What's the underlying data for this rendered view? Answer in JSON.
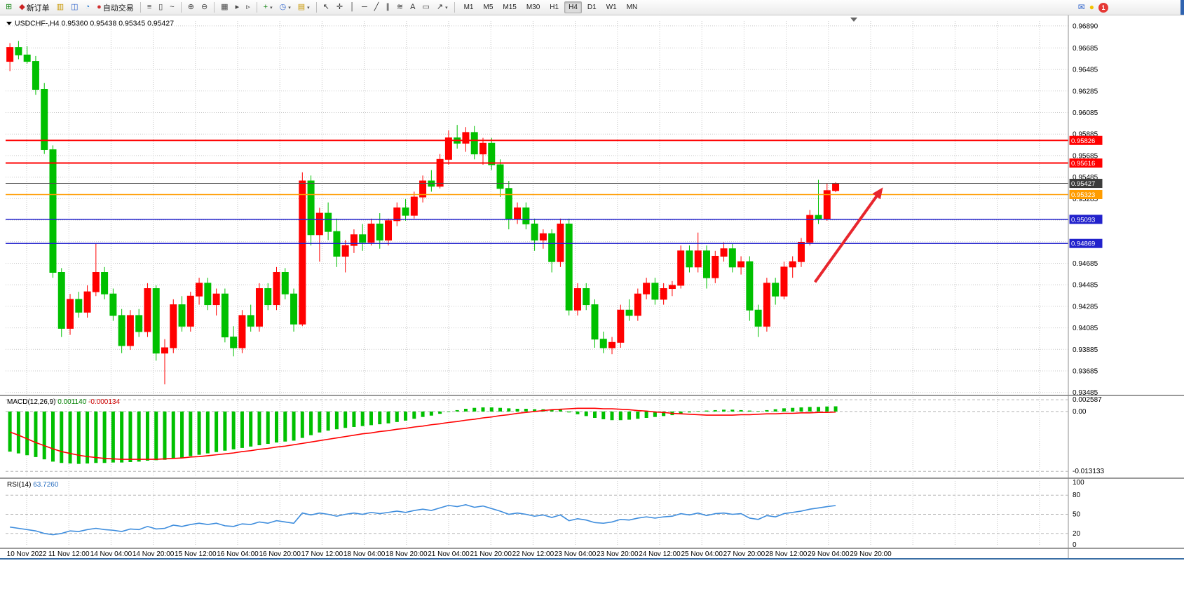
{
  "toolbar": {
    "groups": [
      {
        "name": "file-group",
        "items": [
          {
            "name": "new-chart-button",
            "glyph": "⊞",
            "color": "#1f8a1f"
          },
          {
            "name": "new-order-button",
            "glyph": "◆",
            "color": "#cc2222",
            "label": "新订单"
          },
          {
            "name": "market-watch-button",
            "glyph": "▥",
            "color": "#c89600"
          },
          {
            "name": "data-window-button",
            "glyph": "◫",
            "color": "#3366cc"
          },
          {
            "name": "navigator-button",
            "glyph": "◔",
            "color": "#2f7fd0"
          },
          {
            "name": "auto-trading-button",
            "glyph": "●",
            "color": "#d03030",
            "label": "自动交易"
          }
        ]
      },
      {
        "name": "chart-type-group",
        "items": [
          {
            "name": "bar-chart-button",
            "glyph": "≡",
            "color": "#444444"
          },
          {
            "name": "candlestick-chart-button",
            "glyph": "▯",
            "color": "#444444"
          },
          {
            "name": "line-chart-button",
            "glyph": "~",
            "color": "#444444"
          }
        ]
      },
      {
        "name": "zoom-group",
        "items": [
          {
            "name": "zoom-in-button",
            "glyph": "⊕",
            "color": "#444444"
          },
          {
            "name": "zoom-out-button",
            "glyph": "⊖",
            "color": "#444444"
          }
        ]
      },
      {
        "name": "window-group",
        "items": [
          {
            "name": "tile-windows-button",
            "glyph": "▦",
            "color": "#444444"
          },
          {
            "name": "auto-scroll-button",
            "glyph": "▸",
            "color": "#444444"
          },
          {
            "name": "chart-shift-button",
            "glyph": "▹",
            "color": "#444444"
          }
        ]
      },
      {
        "name": "insert-group",
        "items": [
          {
            "name": "indicators-button",
            "glyph": "+",
            "color": "#1f8a1f",
            "dropdown": true
          },
          {
            "name": "periods-button",
            "glyph": "◷",
            "color": "#3366cc",
            "dropdown": true
          },
          {
            "name": "templates-button",
            "glyph": "▤",
            "color": "#c89600",
            "dropdown": true
          }
        ]
      },
      {
        "name": "objects-group",
        "items": [
          {
            "name": "cursor-button",
            "glyph": "↖",
            "color": "#333333"
          },
          {
            "name": "crosshair-button",
            "glyph": "✛",
            "color": "#333333"
          },
          {
            "name": "vertical-line-button",
            "glyph": "│",
            "color": "#333333"
          },
          {
            "name": "horizontal-line-button",
            "glyph": "─",
            "color": "#333333"
          },
          {
            "name": "trendline-button",
            "glyph": "╱",
            "color": "#333333"
          },
          {
            "name": "channel-button",
            "glyph": "∥",
            "color": "#333333"
          },
          {
            "name": "fibonacci-button",
            "glyph": "≋",
            "color": "#333333"
          },
          {
            "name": "text-button",
            "glyph": "A",
            "color": "#333333"
          },
          {
            "name": "label-button",
            "glyph": "▭",
            "color": "#333333"
          },
          {
            "name": "arrows-button",
            "glyph": "↗",
            "color": "#333333",
            "dropdown": true
          }
        ]
      }
    ],
    "timeframes": [
      "M1",
      "M5",
      "M15",
      "M30",
      "H1",
      "H4",
      "D1",
      "W1",
      "MN"
    ],
    "active_timeframe": "H4",
    "right_items": [
      {
        "name": "contact-icon",
        "glyph": "✉",
        "color": "#3366cc"
      },
      {
        "name": "lightbulb-icon",
        "glyph": "●",
        "color": "#f2c200"
      },
      {
        "name": "notification-badge",
        "label": "1"
      }
    ]
  },
  "header": {
    "symbol_period": "USDCHF-,H4",
    "open": "0.95360",
    "high": "0.95438",
    "low": "0.95345",
    "close": "0.95427"
  },
  "macd_panel": {
    "title": "MACD(12,26,9)",
    "value_main": "0.001140",
    "value_signal": "-0.000134",
    "axis_labels": [
      "0.002587",
      "0.00",
      "-0.013133"
    ]
  },
  "rsi_panel": {
    "title": "RSI(14)",
    "value": "63.7260",
    "axis_labels": [
      "100",
      "80",
      "50",
      "20",
      "0"
    ]
  },
  "chart_data": {
    "type": "candlestick",
    "symbol": "USDCHF-",
    "timeframe": "H4",
    "colors": {
      "bull": "#ff0000",
      "bear": "#00c000",
      "grid": "#c9c9c9",
      "level_dash": "#b5b5b5",
      "separator": "#9a9a9a",
      "macd_hist": "#00c000",
      "macd_signal": "#ff0000",
      "rsi_line": "#3e8ddd",
      "arrow": "#e8262d",
      "current_price_line": "#505050"
    },
    "price_range_top": 0.96935,
    "price_range_bottom": 0.9347,
    "price_axis_ticks": [
      "0.96890",
      "0.96685",
      "0.96485",
      "0.96285",
      "0.96085",
      "0.95885",
      "0.95685",
      "0.95485",
      "0.95285",
      "0.95085",
      "0.94885",
      "0.94685",
      "0.94485",
      "0.94285",
      "0.94085",
      "0.93885",
      "0.93685",
      "0.93485"
    ],
    "time_labels": [
      "10 Nov 2022",
      "11 Nov 12:00",
      "14 Nov 04:00",
      "14 Nov 20:00",
      "15 Nov 12:00",
      "16 Nov 04:00",
      "16 Nov 20:00",
      "17 Nov 12:00",
      "18 Nov 04:00",
      "18 Nov 20:00",
      "21 Nov 04:00",
      "21 Nov 20:00",
      "22 Nov 12:00",
      "23 Nov 04:00",
      "23 Nov 20:00",
      "24 Nov 12:00",
      "25 Nov 04:00",
      "27 Nov 20:00",
      "28 Nov 12:00",
      "29 Nov 04:00",
      "29 Nov 20:00"
    ],
    "levels": [
      {
        "name": "resistance-line-upper",
        "price": 0.95826,
        "label": "0.95826",
        "color": "#ff0000",
        "tag": "#ff0000",
        "width": 2
      },
      {
        "name": "resistance-line-lower",
        "price": 0.95616,
        "label": "0.95616",
        "color": "#ff0000",
        "tag": "#ff0000",
        "width": 2
      },
      {
        "name": "current-price-line",
        "price": 0.95427,
        "label": "0.95427",
        "color": "#505050",
        "tag": "#3c3c3c",
        "width": 1
      },
      {
        "name": "pivot-line-orange",
        "price": 0.95323,
        "label": "0.95323",
        "color": "#ff9c00",
        "tag": "#ff9c00",
        "width": 1.5
      },
      {
        "name": "support-line-upper",
        "price": 0.95093,
        "label": "0.95093",
        "color": "#2222cc",
        "tag": "#2222cc",
        "width": 1.5
      },
      {
        "name": "support-line-lower",
        "price": 0.94869,
        "label": "0.94869",
        "color": "#2222cc",
        "tag": "#2222cc",
        "width": 1.5
      }
    ],
    "arrow": {
      "from_index": 93.6,
      "from_price": 0.9451,
      "to_index": 101.5,
      "to_price": 0.9539,
      "width": 4
    },
    "candles": [
      [
        0.9656,
        0.9673,
        0.9647,
        0.9669
      ],
      [
        0.9669,
        0.9675,
        0.9658,
        0.9662
      ],
      [
        0.9662,
        0.967,
        0.9654,
        0.9656
      ],
      [
        0.9656,
        0.9661,
        0.9625,
        0.963
      ],
      [
        0.963,
        0.9636,
        0.957,
        0.9574
      ],
      [
        0.9574,
        0.9578,
        0.9455,
        0.946
      ],
      [
        0.946,
        0.9464,
        0.94,
        0.9408
      ],
      [
        0.9408,
        0.944,
        0.9402,
        0.9435
      ],
      [
        0.9435,
        0.9442,
        0.9418,
        0.9423
      ],
      [
        0.9423,
        0.9448,
        0.9418,
        0.9442
      ],
      [
        0.9442,
        0.9487,
        0.9438,
        0.946
      ],
      [
        0.946,
        0.9465,
        0.9435,
        0.944
      ],
      [
        0.944,
        0.9445,
        0.9415,
        0.942
      ],
      [
        0.942,
        0.9426,
        0.9385,
        0.9392
      ],
      [
        0.9392,
        0.9425,
        0.9388,
        0.942
      ],
      [
        0.942,
        0.9426,
        0.94,
        0.9405
      ],
      [
        0.9405,
        0.945,
        0.94,
        0.9445
      ],
      [
        0.9445,
        0.9448,
        0.9378,
        0.9385
      ],
      [
        0.9385,
        0.9398,
        0.9356,
        0.939
      ],
      [
        0.939,
        0.9435,
        0.9385,
        0.943
      ],
      [
        0.943,
        0.9438,
        0.9405,
        0.941
      ],
      [
        0.941,
        0.9442,
        0.9405,
        0.9438
      ],
      [
        0.9438,
        0.9455,
        0.943,
        0.945
      ],
      [
        0.945,
        0.9455,
        0.9425,
        0.943
      ],
      [
        0.943,
        0.9445,
        0.942,
        0.944
      ],
      [
        0.944,
        0.9445,
        0.9395,
        0.94
      ],
      [
        0.94,
        0.941,
        0.9382,
        0.939
      ],
      [
        0.939,
        0.9425,
        0.9385,
        0.942
      ],
      [
        0.942,
        0.943,
        0.9405,
        0.941
      ],
      [
        0.941,
        0.945,
        0.9405,
        0.9445
      ],
      [
        0.9445,
        0.945,
        0.9425,
        0.943
      ],
      [
        0.943,
        0.9465,
        0.9425,
        0.946
      ],
      [
        0.946,
        0.9464,
        0.9435,
        0.944
      ],
      [
        0.944,
        0.9445,
        0.9405,
        0.9412
      ],
      [
        0.9412,
        0.9553,
        0.941,
        0.9545
      ],
      [
        0.9545,
        0.955,
        0.9485,
        0.9495
      ],
      [
        0.9495,
        0.952,
        0.947,
        0.9515
      ],
      [
        0.9515,
        0.9525,
        0.949,
        0.9498
      ],
      [
        0.9498,
        0.951,
        0.9465,
        0.9475
      ],
      [
        0.9475,
        0.949,
        0.946,
        0.9485
      ],
      [
        0.9485,
        0.95,
        0.9478,
        0.9495
      ],
      [
        0.9495,
        0.9505,
        0.948,
        0.9488
      ],
      [
        0.9488,
        0.951,
        0.9485,
        0.9505
      ],
      [
        0.9505,
        0.9515,
        0.9482,
        0.949
      ],
      [
        0.949,
        0.951,
        0.9485,
        0.9508
      ],
      [
        0.9508,
        0.9525,
        0.9503,
        0.952
      ],
      [
        0.952,
        0.9528,
        0.9508,
        0.9513
      ],
      [
        0.9513,
        0.9535,
        0.951,
        0.953
      ],
      [
        0.953,
        0.955,
        0.9525,
        0.9545
      ],
      [
        0.9545,
        0.9555,
        0.9535,
        0.954
      ],
      [
        0.954,
        0.957,
        0.9538,
        0.9565
      ],
      [
        0.9565,
        0.9592,
        0.956,
        0.9585
      ],
      [
        0.9585,
        0.9597,
        0.9575,
        0.958
      ],
      [
        0.958,
        0.9595,
        0.9572,
        0.959
      ],
      [
        0.959,
        0.9596,
        0.9565,
        0.957
      ],
      [
        0.957,
        0.9585,
        0.956,
        0.958
      ],
      [
        0.958,
        0.9585,
        0.9555,
        0.956
      ],
      [
        0.956,
        0.9565,
        0.953,
        0.9538
      ],
      [
        0.9538,
        0.9545,
        0.95,
        0.951
      ],
      [
        0.951,
        0.9525,
        0.9505,
        0.952
      ],
      [
        0.952,
        0.9525,
        0.95,
        0.9505
      ],
      [
        0.9505,
        0.951,
        0.948,
        0.949
      ],
      [
        0.949,
        0.95,
        0.9482,
        0.9496
      ],
      [
        0.9496,
        0.95,
        0.946,
        0.947
      ],
      [
        0.947,
        0.951,
        0.9465,
        0.9505
      ],
      [
        0.9505,
        0.951,
        0.942,
        0.9425
      ],
      [
        0.9425,
        0.945,
        0.942,
        0.9445
      ],
      [
        0.9445,
        0.945,
        0.9425,
        0.943
      ],
      [
        0.943,
        0.9435,
        0.939,
        0.9398
      ],
      [
        0.9398,
        0.9405,
        0.9385,
        0.939
      ],
      [
        0.939,
        0.94,
        0.9384,
        0.9395
      ],
      [
        0.9395,
        0.943,
        0.939,
        0.9425
      ],
      [
        0.9425,
        0.9435,
        0.9415,
        0.942
      ],
      [
        0.942,
        0.9445,
        0.9415,
        0.944
      ],
      [
        0.944,
        0.9455,
        0.9435,
        0.945
      ],
      [
        0.945,
        0.9455,
        0.943,
        0.9435
      ],
      [
        0.9435,
        0.945,
        0.943,
        0.9445
      ],
      [
        0.9445,
        0.9452,
        0.9438,
        0.9448
      ],
      [
        0.9448,
        0.9485,
        0.9445,
        0.948
      ],
      [
        0.948,
        0.9485,
        0.946,
        0.9465
      ],
      [
        0.9465,
        0.9497,
        0.946,
        0.948
      ],
      [
        0.948,
        0.9485,
        0.9445,
        0.9455
      ],
      [
        0.9455,
        0.948,
        0.945,
        0.9475
      ],
      [
        0.9475,
        0.9488,
        0.947,
        0.9482
      ],
      [
        0.9482,
        0.9487,
        0.946,
        0.9465
      ],
      [
        0.9465,
        0.9475,
        0.9458,
        0.947
      ],
      [
        0.947,
        0.9475,
        0.9415,
        0.9425
      ],
      [
        0.9425,
        0.943,
        0.94,
        0.941
      ],
      [
        0.941,
        0.9455,
        0.9405,
        0.945
      ],
      [
        0.945,
        0.9455,
        0.943,
        0.9438
      ],
      [
        0.9438,
        0.947,
        0.9435,
        0.9465
      ],
      [
        0.9465,
        0.9475,
        0.9455,
        0.947
      ],
      [
        0.947,
        0.9492,
        0.9465,
        0.9488
      ],
      [
        0.9488,
        0.9518,
        0.9485,
        0.9513
      ],
      [
        0.9513,
        0.9546,
        0.9505,
        0.951
      ],
      [
        0.951,
        0.9543,
        0.9508,
        0.9536
      ],
      [
        0.9536,
        0.95438,
        0.95345,
        0.95427
      ]
    ],
    "macd": {
      "range_max": 0.0026,
      "range_min": -0.0131,
      "grid_values": [
        0.002587,
        0,
        -0.013133
      ],
      "histogram": [
        -0.0088,
        -0.0092,
        -0.0096,
        -0.01,
        -0.0105,
        -0.011,
        -0.0113,
        -0.0114,
        -0.0115,
        -0.0114,
        -0.0113,
        -0.0113,
        -0.0112,
        -0.0112,
        -0.0111,
        -0.011,
        -0.0108,
        -0.0107,
        -0.0106,
        -0.0104,
        -0.0101,
        -0.0098,
        -0.0095,
        -0.0092,
        -0.0089,
        -0.0086,
        -0.0083,
        -0.008,
        -0.0077,
        -0.0074,
        -0.0071,
        -0.0068,
        -0.0066,
        -0.0064,
        -0.0058,
        -0.0052,
        -0.0046,
        -0.0042,
        -0.0039,
        -0.0036,
        -0.0034,
        -0.0032,
        -0.003,
        -0.0028,
        -0.0026,
        -0.0023,
        -0.002,
        -0.0016,
        -0.0012,
        -0.0009,
        -0.0005,
        -0.0001,
        0.0003,
        0.0006,
        0.0008,
        0.0009,
        0.0009,
        0.0008,
        0.0007,
        0.0006,
        0.0006,
        0.0005,
        0.0005,
        0.0004,
        0.0004,
        -0.0002,
        -0.0006,
        -0.001,
        -0.0014,
        -0.0017,
        -0.0019,
        -0.0019,
        -0.0018,
        -0.0016,
        -0.0014,
        -0.0012,
        -0.001,
        -0.0008,
        -0.0005,
        -0.0002,
        0.0001,
        0.0002,
        0.0003,
        0.0004,
        0.0004,
        0.0003,
        0.0002,
        0.0001,
        0.0003,
        0.0005,
        0.0007,
        0.0008,
        0.0009,
        0.001,
        0.001,
        0.0011,
        0.00114
      ],
      "signal": [
        -0.0045,
        -0.0052,
        -0.006,
        -0.0068,
        -0.0075,
        -0.0082,
        -0.0088,
        -0.0092,
        -0.0096,
        -0.0099,
        -0.0101,
        -0.0103,
        -0.0104,
        -0.0105,
        -0.0105,
        -0.0105,
        -0.0105,
        -0.0105,
        -0.0104,
        -0.0103,
        -0.0102,
        -0.01,
        -0.0099,
        -0.0097,
        -0.0095,
        -0.0093,
        -0.0091,
        -0.0088,
        -0.0086,
        -0.0083,
        -0.0081,
        -0.0078,
        -0.0076,
        -0.0073,
        -0.007,
        -0.0067,
        -0.0064,
        -0.0061,
        -0.0058,
        -0.0055,
        -0.0052,
        -0.0049,
        -0.0047,
        -0.0044,
        -0.0042,
        -0.0039,
        -0.0037,
        -0.0034,
        -0.0032,
        -0.0029,
        -0.0027,
        -0.0024,
        -0.0022,
        -0.0019,
        -0.0017,
        -0.0014,
        -0.0012,
        -0.0009,
        -0.0007,
        -0.0004,
        -0.0002,
        0.0,
        0.0002,
        0.0004,
        0.0005,
        0.0006,
        0.0007,
        0.0007,
        0.0007,
        0.0006,
        0.0006,
        0.0005,
        0.0004,
        0.0002,
        0.0001,
        -0.0001,
        -0.0002,
        -0.0004,
        -0.0005,
        -0.0006,
        -0.0007,
        -0.0008,
        -0.0008,
        -0.0008,
        -0.0008,
        -0.0007,
        -0.0007,
        -0.0006,
        -0.0005,
        -0.0005,
        -0.0004,
        -0.0004,
        -0.0003,
        -0.0003,
        -0.0002,
        -0.0002,
        -0.000134
      ]
    },
    "rsi": {
      "levels": [
        80,
        50,
        20
      ],
      "values": [
        30,
        28,
        26,
        24,
        20,
        18,
        20,
        24,
        23,
        26,
        28,
        26,
        25,
        23,
        27,
        26,
        31,
        27,
        28,
        33,
        31,
        34,
        36,
        34,
        36,
        32,
        31,
        35,
        34,
        38,
        36,
        40,
        38,
        36,
        52,
        49,
        52,
        50,
        47,
        50,
        52,
        50,
        53,
        51,
        53,
        55,
        53,
        56,
        58,
        56,
        60,
        64,
        62,
        65,
        61,
        63,
        59,
        55,
        50,
        52,
        50,
        47,
        49,
        45,
        49,
        40,
        43,
        41,
        37,
        36,
        38,
        42,
        41,
        44,
        46,
        44,
        46,
        47,
        51,
        49,
        52,
        48,
        51,
        52,
        50,
        51,
        44,
        42,
        48,
        46,
        51,
        53,
        55,
        58,
        60,
        62,
        63.726
      ]
    }
  }
}
